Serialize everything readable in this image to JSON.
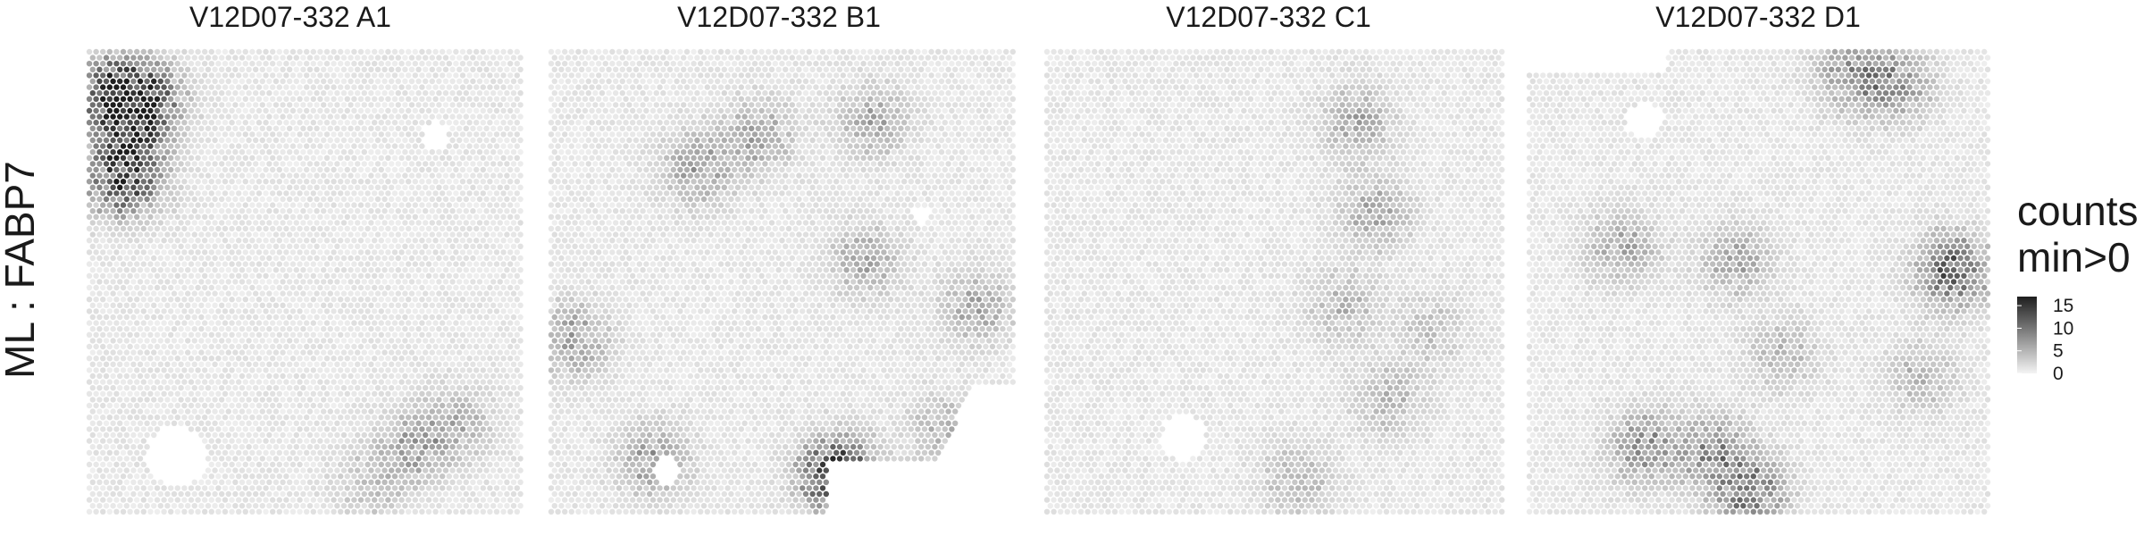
{
  "chart_data": {
    "type": "heatmap",
    "title": "",
    "ylabel": "ML : FABP7",
    "panels": [
      {
        "title": "V12D07-332  A1",
        "hotspots": [
          {
            "x": 0.05,
            "y": 0.08,
            "value": 9
          },
          {
            "x": 0.1,
            "y": 0.12,
            "value": 8
          },
          {
            "x": 0.14,
            "y": 0.1,
            "value": 7
          },
          {
            "x": 0.08,
            "y": 0.18,
            "value": 6
          },
          {
            "x": 0.06,
            "y": 0.28,
            "value": 6
          },
          {
            "x": 0.1,
            "y": 0.27,
            "value": 7
          },
          {
            "x": 0.75,
            "y": 0.85,
            "value": 5
          },
          {
            "x": 0.85,
            "y": 0.8,
            "value": 4
          },
          {
            "x": 0.65,
            "y": 0.93,
            "value": 3
          }
        ]
      },
      {
        "title": "V12D07-332  B1",
        "hotspots": [
          {
            "x": 0.32,
            "y": 0.25,
            "value": 6
          },
          {
            "x": 0.45,
            "y": 0.18,
            "value": 5
          },
          {
            "x": 0.7,
            "y": 0.15,
            "value": 5
          },
          {
            "x": 0.68,
            "y": 0.45,
            "value": 5
          },
          {
            "x": 0.92,
            "y": 0.55,
            "value": 5
          },
          {
            "x": 0.05,
            "y": 0.62,
            "value": 6
          },
          {
            "x": 0.22,
            "y": 0.88,
            "value": 6
          },
          {
            "x": 0.62,
            "y": 0.91,
            "value": 16
          },
          {
            "x": 0.85,
            "y": 0.82,
            "value": 4
          }
        ]
      },
      {
        "title": "V12D07-332  C1",
        "hotspots": [
          {
            "x": 0.68,
            "y": 0.15,
            "value": 5
          },
          {
            "x": 0.72,
            "y": 0.35,
            "value": 5
          },
          {
            "x": 0.65,
            "y": 0.55,
            "value": 4
          },
          {
            "x": 0.75,
            "y": 0.75,
            "value": 4
          },
          {
            "x": 0.55,
            "y": 0.92,
            "value": 4
          },
          {
            "x": 0.85,
            "y": 0.6,
            "value": 3
          }
        ]
      },
      {
        "title": "V12D07-332  D1",
        "hotspots": [
          {
            "x": 0.7,
            "y": 0.05,
            "value": 7
          },
          {
            "x": 0.8,
            "y": 0.07,
            "value": 6
          },
          {
            "x": 0.2,
            "y": 0.42,
            "value": 5
          },
          {
            "x": 0.45,
            "y": 0.45,
            "value": 5
          },
          {
            "x": 0.92,
            "y": 0.47,
            "value": 11
          },
          {
            "x": 0.25,
            "y": 0.85,
            "value": 7
          },
          {
            "x": 0.4,
            "y": 0.86,
            "value": 7
          },
          {
            "x": 0.48,
            "y": 0.95,
            "value": 9
          },
          {
            "x": 0.55,
            "y": 0.65,
            "value": 4
          },
          {
            "x": 0.85,
            "y": 0.7,
            "value": 4
          }
        ]
      }
    ],
    "legend": {
      "title": [
        "counts",
        "min>0"
      ],
      "ticks": [
        15,
        10,
        5,
        0
      ],
      "range": [
        0,
        17
      ],
      "placement": "right",
      "colors": {
        "low": "#f4f4f4",
        "high": "#1e1e1e"
      }
    },
    "grid": false
  }
}
